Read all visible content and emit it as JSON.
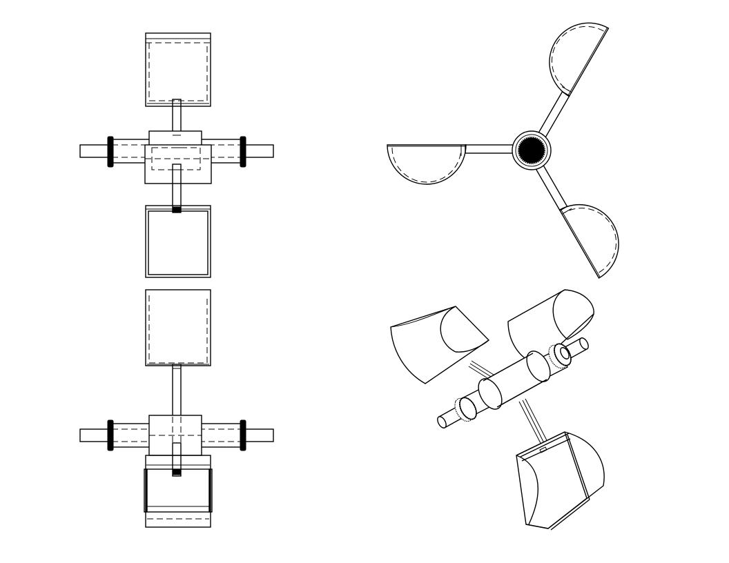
{
  "drawing": {
    "subject": "",
    "views": [
      "side-view-top",
      "side-view-bottom",
      "top-view",
      "isometric-view"
    ]
  },
  "colors": {
    "line": "#000000",
    "background": "#ffffff"
  }
}
